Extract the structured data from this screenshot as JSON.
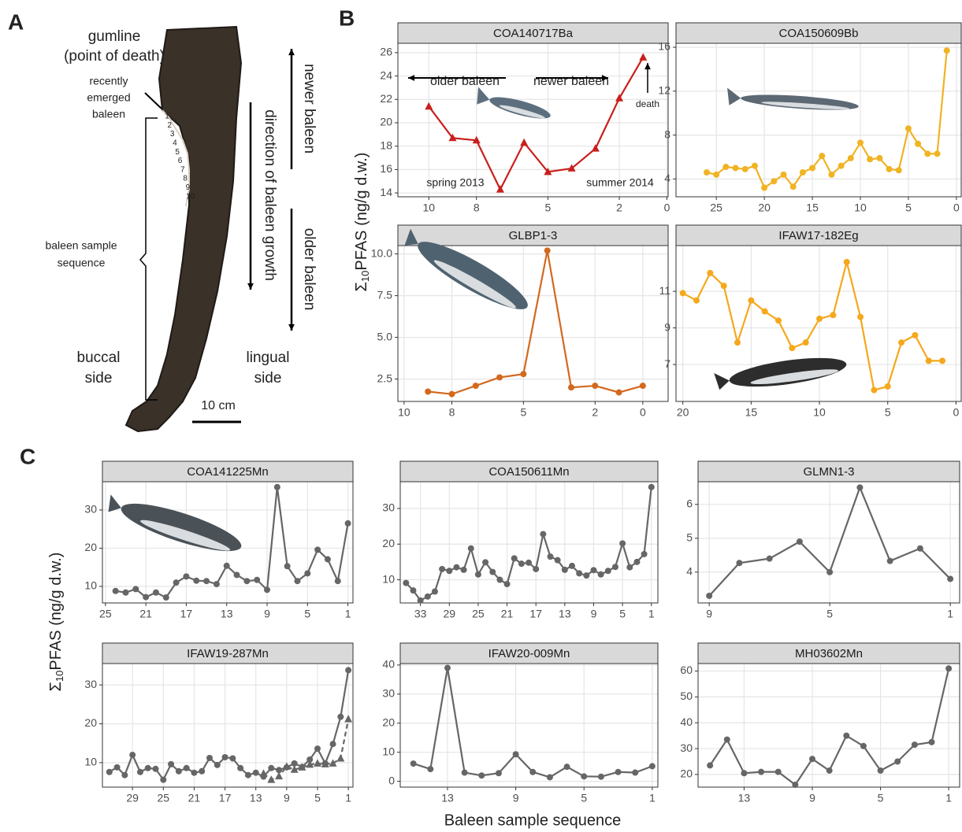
{
  "panel_labels": [
    "A",
    "B",
    "C"
  ],
  "y_label": {
    "prefix": "Σ",
    "sub": "10",
    "main": "PFAS (ng/g d.w.)"
  },
  "x_label": "Baleen sample sequence",
  "panel_a": {
    "texts": [
      "gumline",
      "(point of death)",
      "recently",
      "emerged",
      "baleen",
      "baleen sample",
      "sequence",
      "buccal",
      "side",
      "lingual",
      "side",
      "10 cm",
      "newer baleen",
      "direction of baleen growth",
      "older baleen"
    ],
    "sample_numbers": [
      "1",
      "2",
      "3",
      "4",
      "5",
      "6",
      "7",
      "8",
      "9",
      "10"
    ]
  },
  "chart_data": [
    {
      "type": "line",
      "title": "COA140717Ba",
      "x": [
        10,
        9,
        8,
        7,
        6,
        5,
        4,
        3,
        2,
        1
      ],
      "series": [
        {
          "color": "#c8201e",
          "marker": "triangle",
          "values": [
            21.4,
            18.7,
            18.5,
            14.3,
            18.3,
            15.8,
            16.1,
            17.8,
            22.1,
            25.6
          ]
        }
      ],
      "xlim": [
        11.3,
        -0.05
      ],
      "ylim": [
        13.67,
        26.8
      ],
      "xticks": [
        10,
        8,
        5,
        2,
        0
      ],
      "yticks": [
        14,
        16,
        18,
        20,
        22,
        24,
        26
      ],
      "grid": true,
      "annotations": [
        "older baleen",
        "newer baleen",
        "death",
        "spring 2013",
        "summer 2014"
      ]
    },
    {
      "type": "line",
      "title": "COA150609Bb",
      "x": [
        26,
        25,
        24,
        23,
        22,
        21,
        20,
        19,
        18,
        17,
        16,
        15,
        14,
        13,
        12,
        11,
        10,
        9,
        8,
        7,
        6,
        5,
        4,
        3,
        2,
        1
      ],
      "series": [
        {
          "color": "#f0b323",
          "marker": "circle",
          "values": [
            4.6,
            4.4,
            5.1,
            5.0,
            4.9,
            5.2,
            3.2,
            3.8,
            4.4,
            3.3,
            4.6,
            5.0,
            6.1,
            4.4,
            5.2,
            5.9,
            7.3,
            5.8,
            5.9,
            4.9,
            4.8,
            8.6,
            7.2,
            6.3,
            6.3,
            15.7
          ]
        }
      ],
      "xlim": [
        29.2,
        -0.5
      ],
      "ylim": [
        2.38,
        16.36
      ],
      "xticks": [
        25,
        20,
        15,
        10,
        5,
        0
      ],
      "yticks": [
        4,
        8,
        12,
        16
      ],
      "grid": true
    },
    {
      "type": "line",
      "title": "GLBP1-3",
      "x": [
        9,
        8,
        7,
        6,
        5,
        4,
        3,
        2,
        1,
        0
      ],
      "series": [
        {
          "color": "#d2691e",
          "marker": "circle",
          "values": [
            1.75,
            1.6,
            2.1,
            2.6,
            2.8,
            10.2,
            2.0,
            2.1,
            1.7,
            2.1
          ]
        }
      ],
      "xlim": [
        10.26,
        -1.06
      ],
      "ylim": [
        1.16,
        10.5
      ],
      "xticks": [
        10,
        8,
        5,
        2,
        0
      ],
      "yticks": [
        {
          "value": 2.5,
          "label": "2.5"
        },
        {
          "value": 5,
          "label": "5.0"
        },
        {
          "value": 7.5,
          "label": "7.5"
        },
        {
          "value": 10,
          "label": "10.0"
        }
      ],
      "grid": true
    },
    {
      "type": "line",
      "title": "IFAW17-182Eg",
      "x": [
        20,
        19,
        18,
        17,
        16,
        15,
        14,
        13,
        12,
        11,
        10,
        9,
        8,
        7,
        6,
        5,
        4,
        3,
        2,
        1
      ],
      "series": [
        {
          "color": "#f5a81c",
          "marker": "circle",
          "values": [
            10.9,
            10.5,
            12.0,
            11.3,
            8.2,
            10.5,
            9.9,
            9.4,
            7.9,
            8.2,
            9.5,
            9.7,
            12.6,
            9.6,
            5.6,
            5.8,
            8.2,
            8.6,
            7.2,
            7.2
          ]
        }
      ],
      "xlim": [
        20.5,
        -0.38
      ],
      "ylim": [
        4.98,
        13.5
      ],
      "xticks": [
        20,
        15,
        10,
        5,
        0
      ],
      "yticks": [
        7,
        9,
        11
      ],
      "grid": true
    },
    {
      "type": "line",
      "title": "COA141225Mn",
      "x": [
        24,
        23,
        22,
        21,
        20,
        19,
        18,
        17,
        16,
        15,
        14,
        13,
        12,
        11,
        10,
        9,
        8,
        7,
        6,
        5,
        4,
        3,
        2,
        1
      ],
      "series": [
        {
          "color": "#666666",
          "marker": "circle",
          "values": [
            8.8,
            8.4,
            9.3,
            7.2,
            8.4,
            7.1,
            11.0,
            12.6,
            11.5,
            11.4,
            10.6,
            15.4,
            13.0,
            11.4,
            11.7,
            9.1,
            36.0,
            15.3,
            11.4,
            13.4,
            19.6,
            17.1,
            11.4,
            26.5
          ]
        }
      ],
      "xlim": [
        25.3,
        0.5
      ],
      "ylim": [
        5.67,
        37.4
      ],
      "xticks": [
        25,
        21,
        17,
        13,
        9,
        5,
        1
      ],
      "yticks": [
        10,
        20,
        30
      ],
      "grid": true
    },
    {
      "type": "line",
      "title": "COA150611Mn",
      "x": [
        35,
        34,
        33,
        32,
        31,
        30,
        29,
        28,
        27,
        26,
        25,
        24,
        23,
        22,
        21,
        20,
        19,
        18,
        17,
        16,
        15,
        14,
        13,
        12,
        11,
        10,
        9,
        8,
        7,
        6,
        5,
        4,
        3,
        2,
        1
      ],
      "series": [
        {
          "color": "#666666",
          "marker": "circle",
          "values": [
            9.1,
            7.0,
            4.2,
            5.3,
            6.7,
            13.0,
            12.5,
            13.5,
            12.8,
            18.8,
            11.5,
            14.9,
            12.2,
            10.0,
            8.8,
            16.0,
            14.5,
            14.8,
            13.0,
            22.8,
            16.5,
            15.5,
            12.8,
            13.9,
            11.8,
            11.2,
            12.7,
            11.5,
            12.5,
            13.6,
            20.2,
            13.5,
            15.0,
            17.2,
            36.0
          ]
        }
      ],
      "xlim": [
        35.8,
        0.1
      ],
      "ylim": [
        3.5,
        37.5
      ],
      "xticks": [
        33,
        29,
        25,
        21,
        17,
        13,
        9,
        5,
        1
      ],
      "yticks": [
        10,
        20,
        30
      ],
      "grid": true
    },
    {
      "type": "line",
      "title": "GLMN1-3",
      "x": [
        9,
        8,
        7,
        6,
        5,
        4,
        3,
        2,
        1
      ],
      "series": [
        {
          "color": "#666666",
          "marker": "circle",
          "values": [
            3.3,
            4.27,
            4.4,
            4.9,
            4.0,
            6.5,
            4.33,
            4.7,
            3.8
          ]
        }
      ],
      "xlim": [
        9.37,
        0.69
      ],
      "ylim": [
        3.09,
        6.67
      ],
      "xticks": [
        9,
        5,
        1
      ],
      "yticks": [
        4,
        5,
        6
      ],
      "grid": true
    },
    {
      "type": "line",
      "title": "IFAW19-287Mn",
      "x": [
        32,
        31,
        30,
        29,
        28,
        27,
        26,
        25,
        24,
        23,
        22,
        21,
        20,
        19,
        18,
        17,
        16,
        15,
        14,
        13,
        12,
        11,
        10,
        9,
        8,
        7,
        6,
        5,
        4,
        3,
        2,
        1
      ],
      "series": [
        {
          "color": "#666666",
          "marker": "circle",
          "values": [
            7.6,
            8.8,
            6.8,
            12.0,
            7.6,
            8.6,
            8.4,
            5.6,
            9.6,
            7.8,
            8.6,
            7.4,
            7.8,
            11.2,
            9.4,
            11.4,
            11.1,
            8.6,
            6.8,
            7.4,
            6.4,
            8.6,
            8.1,
            8.8,
            9.8,
            8.9,
            10.8,
            13.6,
            9.8,
            14.8,
            21.8,
            33.8
          ]
        },
        {
          "color": "#666666",
          "marker": "triangle",
          "line_style": "dashed",
          "x": [
            12,
            11,
            10,
            9,
            8,
            7,
            6,
            5,
            4,
            3,
            2,
            1
          ],
          "values": [
            7.2,
            5.6,
            6.5,
            9.0,
            8.2,
            8.8,
            9.5,
            9.8,
            9.6,
            9.8,
            11.1,
            21.2
          ]
        }
      ],
      "xlim": [
        32.9,
        0.4
      ],
      "ylim": [
        3.7,
        35.5
      ],
      "xticks": [
        29,
        25,
        21,
        17,
        13,
        9,
        5,
        1
      ],
      "yticks": [
        10,
        20,
        30
      ],
      "grid": true
    },
    {
      "type": "line",
      "title": "IFAW20-009Mn",
      "x": [
        15,
        14,
        13,
        12,
        11,
        10,
        9,
        8,
        7,
        6,
        5,
        4,
        3,
        2,
        1
      ],
      "series": [
        {
          "color": "#666666",
          "marker": "circle",
          "values": [
            6.1,
            4.2,
            39.0,
            3.0,
            2.0,
            2.8,
            9.3,
            3.2,
            1.4,
            5.0,
            1.7,
            1.6,
            3.2,
            3.0,
            5.2
          ]
        }
      ],
      "xlim": [
        15.77,
        0.67
      ],
      "ylim": [
        -2,
        40.5
      ],
      "xticks": [
        13,
        9,
        5,
        1
      ],
      "yticks": [
        0,
        10,
        20,
        30,
        40
      ],
      "grid": true
    },
    {
      "type": "line",
      "title": "MH03602Mn",
      "x": [
        15,
        14,
        13,
        12,
        11,
        10,
        9,
        8,
        7,
        6,
        5,
        4,
        3,
        2,
        1
      ],
      "series": [
        {
          "color": "#666666",
          "marker": "circle",
          "values": [
            23.5,
            33.5,
            20.5,
            21.0,
            21.0,
            16.0,
            26.0,
            21.5,
            35.0,
            31.0,
            21.5,
            25.0,
            31.5,
            32.5,
            61.0
          ]
        }
      ],
      "xlim": [
        15.7,
        0.36
      ],
      "ylim": [
        15.1,
        62.9
      ],
      "xticks": [
        13,
        9,
        5,
        1
      ],
      "yticks": [
        20,
        30,
        40,
        50,
        60
      ],
      "grid": true
    }
  ]
}
